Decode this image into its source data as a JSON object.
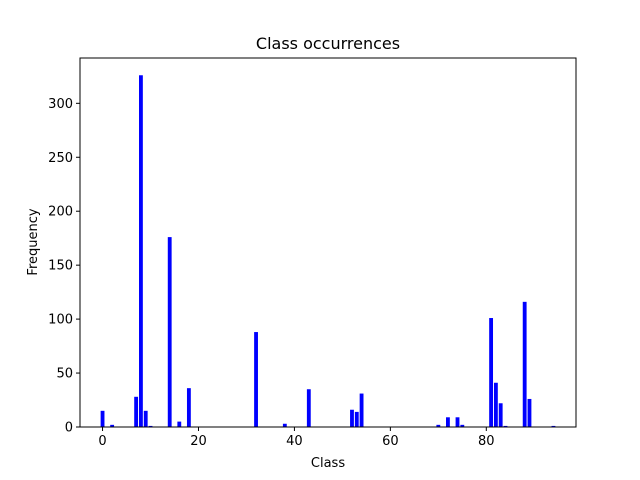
{
  "chart_data": {
    "type": "bar",
    "title": "Class occurrences",
    "xlabel": "Class",
    "ylabel": "Frequency",
    "xlim": [
      -4.7,
      98.7
    ],
    "ylim": [
      0,
      342
    ],
    "xticks": [
      0,
      20,
      40,
      60,
      80
    ],
    "yticks": [
      0,
      50,
      100,
      150,
      200,
      250,
      300
    ],
    "grid": false,
    "bar_color": "#0000ff",
    "bar_width": 0.8,
    "x": [
      0,
      2,
      7,
      8,
      9,
      10,
      14,
      16,
      18,
      32,
      38,
      43,
      52,
      53,
      54,
      70,
      72,
      74,
      75,
      81,
      82,
      83,
      84,
      88,
      89,
      94
    ],
    "values": [
      15,
      2,
      28,
      326,
      15,
      1,
      176,
      5,
      36,
      88,
      3,
      35,
      16,
      14,
      31,
      2,
      9,
      9,
      2,
      101,
      41,
      22,
      1,
      116,
      26,
      1
    ]
  }
}
